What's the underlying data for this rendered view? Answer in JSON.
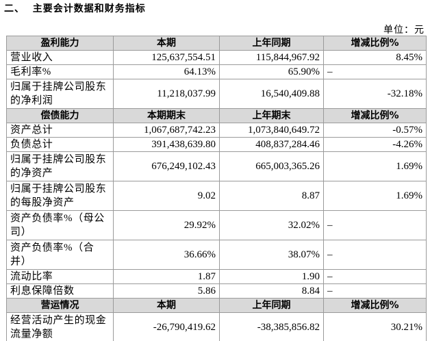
{
  "title": "二、  主要会计数据和财务指标",
  "unit": "单位：元",
  "sections": [
    {
      "header": [
        "盈利能力",
        "本期",
        "上年同期",
        "增减比例%"
      ],
      "rows": [
        [
          "营业收入",
          "125,637,554.51",
          "115,844,967.92",
          "8.45%"
        ],
        [
          "毛利率%",
          "64.13%",
          "65.90%",
          "–"
        ],
        [
          "归属于挂牌公司股东的净利润",
          "11,218,037.99",
          "16,540,409.88",
          "-32.18%"
        ]
      ]
    },
    {
      "header": [
        "偿债能力",
        "本期期末",
        "上年期末",
        "增减比例%"
      ],
      "rows": [
        [
          "资产总计",
          "1,067,687,742.23",
          "1,073,840,649.72",
          "-0.57%"
        ],
        [
          "负债总计",
          "391,438,639.80",
          "408,837,284.46",
          "-4.26%"
        ],
        [
          "归属于挂牌公司股东的净资产",
          "676,249,102.43",
          "665,003,365.26",
          "1.69%"
        ],
        [
          "归属于挂牌公司股东的每股净资产",
          "9.02",
          "8.87",
          "1.69%"
        ],
        [
          "资产负债率%（母公司）",
          "29.92%",
          "32.02%",
          "–"
        ],
        [
          "资产负债率%（合并）",
          "36.66%",
          "38.07%",
          "–"
        ],
        [
          "流动比率",
          "1.87",
          "1.90",
          "–"
        ],
        [
          "利息保障倍数",
          "5.86",
          "8.84",
          "–"
        ]
      ]
    },
    {
      "header": [
        "营运情况",
        "本期",
        "上年同期",
        "增减比例%"
      ],
      "rows": [
        [
          "经营活动产生的现金流量净额",
          "-26,790,419.62",
          "-38,385,856.82",
          "30.21%"
        ]
      ]
    }
  ]
}
